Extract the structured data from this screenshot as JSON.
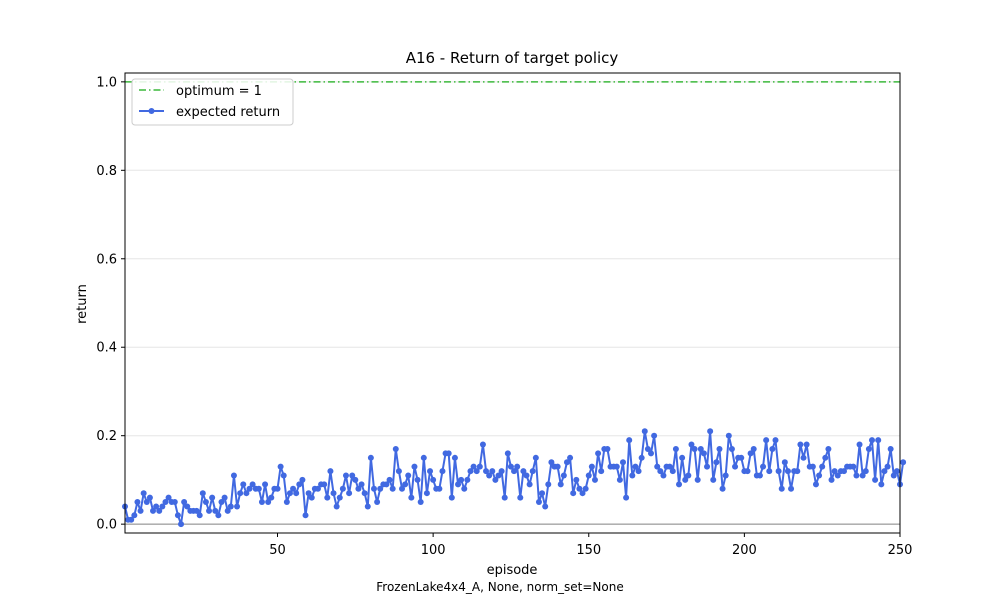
{
  "chart_data": {
    "type": "line",
    "title": "A16 - Return of target policy",
    "xlabel": "episode",
    "ylabel": "return",
    "footer": "FrozenLake4x4_A, None, norm_set=None",
    "xlim": [
      1,
      250
    ],
    "ylim": [
      -0.02,
      1.02
    ],
    "x_ticks": [
      50,
      100,
      150,
      200,
      250
    ],
    "y_ticks": [
      0.0,
      0.2,
      0.4,
      0.6,
      0.8,
      1.0
    ],
    "x_tick_labels": [
      "50",
      "100",
      "150",
      "200",
      "250"
    ],
    "y_tick_labels": [
      "0.0",
      "0.2",
      "0.4",
      "0.6",
      "0.8",
      "1.0"
    ],
    "grid": "horizontal",
    "legend_position": "top-left",
    "reference_lines": [
      {
        "name": "optimum = 1",
        "y": 1.0,
        "style": "dash-dot",
        "color": "#3cb93c"
      }
    ],
    "zero_line": {
      "y": 0.0,
      "color": "#808080"
    },
    "series": [
      {
        "name": "expected return",
        "color": "#4169e1",
        "marker": "circle",
        "x_start": 1,
        "values": [
          0.04,
          0.01,
          0.01,
          0.02,
          0.05,
          0.03,
          0.07,
          0.05,
          0.06,
          0.03,
          0.04,
          0.03,
          0.04,
          0.05,
          0.06,
          0.05,
          0.05,
          0.02,
          0.0,
          0.05,
          0.04,
          0.03,
          0.03,
          0.03,
          0.02,
          0.07,
          0.05,
          0.03,
          0.06,
          0.03,
          0.02,
          0.05,
          0.06,
          0.03,
          0.04,
          0.11,
          0.04,
          0.07,
          0.09,
          0.07,
          0.08,
          0.09,
          0.08,
          0.08,
          0.05,
          0.09,
          0.05,
          0.06,
          0.08,
          0.08,
          0.13,
          0.11,
          0.05,
          0.07,
          0.08,
          0.07,
          0.09,
          0.1,
          0.02,
          0.07,
          0.06,
          0.08,
          0.08,
          0.09,
          0.09,
          0.06,
          0.12,
          0.07,
          0.04,
          0.06,
          0.08,
          0.11,
          0.07,
          0.11,
          0.1,
          0.08,
          0.09,
          0.07,
          0.04,
          0.15,
          0.08,
          0.05,
          0.08,
          0.09,
          0.09,
          0.1,
          0.08,
          0.17,
          0.12,
          0.08,
          0.09,
          0.11,
          0.06,
          0.13,
          0.1,
          0.05,
          0.15,
          0.07,
          0.12,
          0.1,
          0.08,
          0.08,
          0.12,
          0.16,
          0.16,
          0.06,
          0.15,
          0.09,
          0.1,
          0.08,
          0.1,
          0.12,
          0.13,
          0.12,
          0.13,
          0.18,
          0.12,
          0.11,
          0.12,
          0.1,
          0.11,
          0.12,
          0.06,
          0.16,
          0.13,
          0.12,
          0.13,
          0.06,
          0.12,
          0.11,
          0.09,
          0.12,
          0.15,
          0.05,
          0.07,
          0.04,
          0.09,
          0.14,
          0.13,
          0.13,
          0.09,
          0.11,
          0.14,
          0.15,
          0.07,
          0.1,
          0.08,
          0.07,
          0.08,
          0.11,
          0.13,
          0.1,
          0.16,
          0.12,
          0.17,
          0.17,
          0.13,
          0.13,
          0.13,
          0.1,
          0.14,
          0.06,
          0.19,
          0.11,
          0.13,
          0.12,
          0.15,
          0.21,
          0.17,
          0.16,
          0.2,
          0.13,
          0.12,
          0.11,
          0.13,
          0.13,
          0.12,
          0.17,
          0.09,
          0.15,
          0.1,
          0.11,
          0.18,
          0.17,
          0.1,
          0.17,
          0.16,
          0.13,
          0.21,
          0.1,
          0.14,
          0.17,
          0.08,
          0.11,
          0.2,
          0.17,
          0.13,
          0.15,
          0.15,
          0.12,
          0.12,
          0.16,
          0.17,
          0.11,
          0.11,
          0.13,
          0.19,
          0.12,
          0.17,
          0.19,
          0.12,
          0.08,
          0.14,
          0.12,
          0.08,
          0.12,
          0.12,
          0.18,
          0.15,
          0.18,
          0.13,
          0.13,
          0.09,
          0.11,
          0.13,
          0.15,
          0.17,
          0.1,
          0.12,
          0.11,
          0.12,
          0.12,
          0.13,
          0.13,
          0.13,
          0.11,
          0.18,
          0.11,
          0.12,
          0.17,
          0.19,
          0.1,
          0.19,
          0.09,
          0.12,
          0.13,
          0.17,
          0.11,
          0.12,
          0.09,
          0.14
        ]
      }
    ]
  }
}
